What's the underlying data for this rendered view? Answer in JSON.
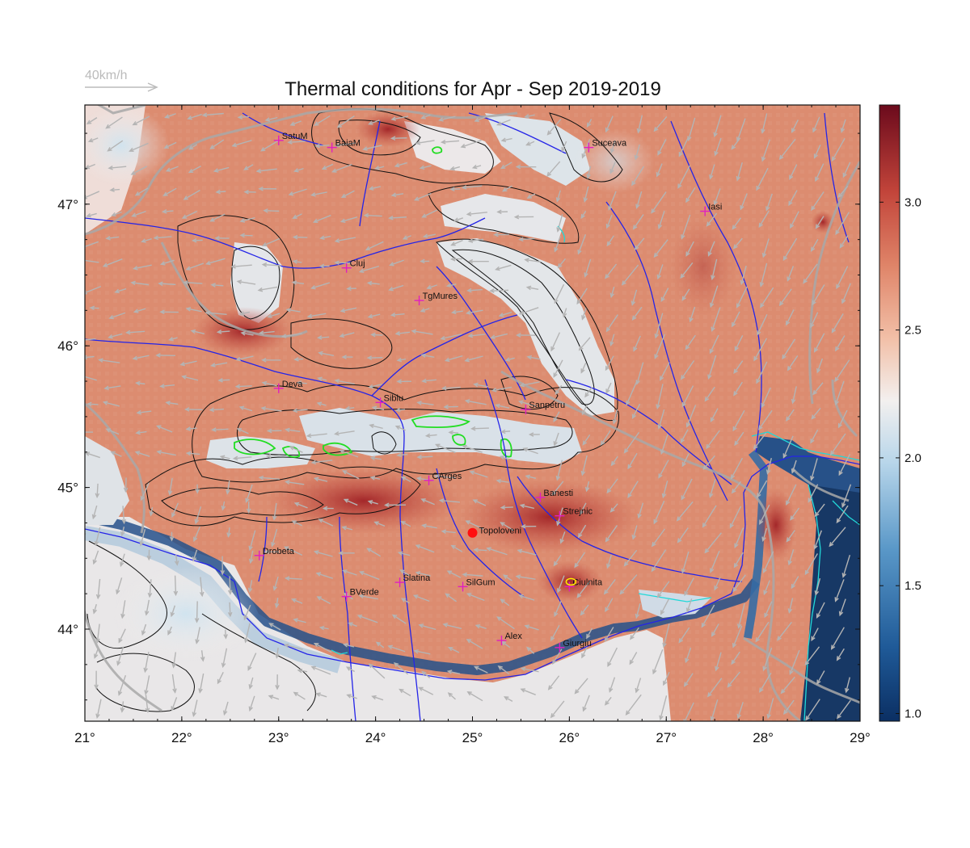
{
  "title": "Thermal conditions for Apr - Sep  2019-2019",
  "wind_legend": {
    "label": "40km/h"
  },
  "map": {
    "lon_range": [
      21,
      29
    ],
    "lat_range": [
      43.35,
      47.7
    ],
    "x_ticks": [
      "21°",
      "22°",
      "23°",
      "24°",
      "25°",
      "26°",
      "27°",
      "28°",
      "29°"
    ],
    "y_ticks": [
      {
        "lat": 44,
        "label": "44°"
      },
      {
        "lat": 45,
        "label": "45°"
      },
      {
        "lat": 46,
        "label": "46°"
      },
      {
        "lat": 47,
        "label": "47°"
      }
    ],
    "cities": [
      {
        "name": "SatuM",
        "lon": 23.0,
        "lat": 47.45
      },
      {
        "name": "BaiaM",
        "lon": 23.55,
        "lat": 47.4
      },
      {
        "name": "Suceava",
        "lon": 26.2,
        "lat": 47.4
      },
      {
        "name": "Iasi",
        "lon": 27.4,
        "lat": 46.95
      },
      {
        "name": "Cluj",
        "lon": 23.7,
        "lat": 46.55
      },
      {
        "name": "TgMures",
        "lon": 24.45,
        "lat": 46.32
      },
      {
        "name": "Deva",
        "lon": 23.0,
        "lat": 45.7
      },
      {
        "name": "Sibiu",
        "lon": 24.05,
        "lat": 45.6
      },
      {
        "name": "Sanpetru",
        "lon": 25.55,
        "lat": 45.55
      },
      {
        "name": "CArges",
        "lon": 24.55,
        "lat": 45.05
      },
      {
        "name": "Banesti",
        "lon": 25.7,
        "lat": 44.93
      },
      {
        "name": "Strejnic",
        "lon": 25.9,
        "lat": 44.8
      },
      {
        "name": "Drobeta",
        "lon": 22.8,
        "lat": 44.52
      },
      {
        "name": "Slatina",
        "lon": 24.25,
        "lat": 44.33
      },
      {
        "name": "SilGum",
        "lon": 24.9,
        "lat": 44.3
      },
      {
        "name": "Ciulnita",
        "lon": 26.0,
        "lat": 44.3
      },
      {
        "name": "BVerde",
        "lon": 23.7,
        "lat": 44.23
      },
      {
        "name": "Alex",
        "lon": 25.3,
        "lat": 43.92
      },
      {
        "name": "Giurgiu",
        "lon": 25.9,
        "lat": 43.87
      }
    ],
    "marked_city": {
      "name": "Topoloveni",
      "lon": 25.0,
      "lat": 44.68
    }
  },
  "colorbar": {
    "ticks": [
      {
        "value": 1.0,
        "label": "1.0"
      },
      {
        "value": 1.5,
        "label": "1.5"
      },
      {
        "value": 2.0,
        "label": "2.0"
      },
      {
        "value": 2.5,
        "label": "2.5"
      },
      {
        "value": 3.0,
        "label": "3.0"
      }
    ],
    "range": [
      0.97,
      3.38
    ],
    "colormap": "RdBu_r"
  },
  "colors": {
    "warm": "#d9765a",
    "hot": "#b7342d",
    "neutral": "#f4eeec",
    "cool": "#a9cfe6",
    "cold": "#0f3d75",
    "river": "#2020e0",
    "border": "#aaaaaa",
    "city_marker": "#e020c0",
    "highlight": "#ff1010"
  }
}
